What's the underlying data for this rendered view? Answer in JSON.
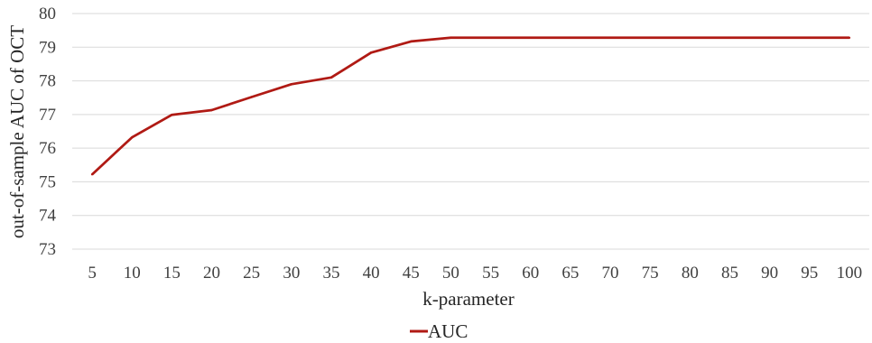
{
  "chart_data": {
    "type": "line",
    "title": "",
    "xlabel": "k-parameter",
    "ylabel": "out-of-sample AUC of OCT",
    "categories": [
      "5",
      "10",
      "15",
      "20",
      "25",
      "30",
      "35",
      "40",
      "45",
      "50",
      "55",
      "60",
      "65",
      "70",
      "75",
      "80",
      "85",
      "90",
      "95",
      "100"
    ],
    "series": [
      {
        "name": "AUC",
        "values": [
          75.22,
          76.32,
          76.99,
          77.13,
          77.52,
          77.9,
          78.1,
          78.84,
          79.17,
          79.28,
          79.28,
          79.28,
          79.28,
          79.28,
          79.28,
          79.28,
          79.28,
          79.28,
          79.28,
          79.28
        ],
        "color": "#b01a14"
      }
    ],
    "yticks": [
      "73",
      "74",
      "75",
      "76",
      "77",
      "78",
      "79",
      "80"
    ],
    "ylim": [
      73,
      80
    ],
    "grid": true,
    "legend_position": "bottom"
  }
}
